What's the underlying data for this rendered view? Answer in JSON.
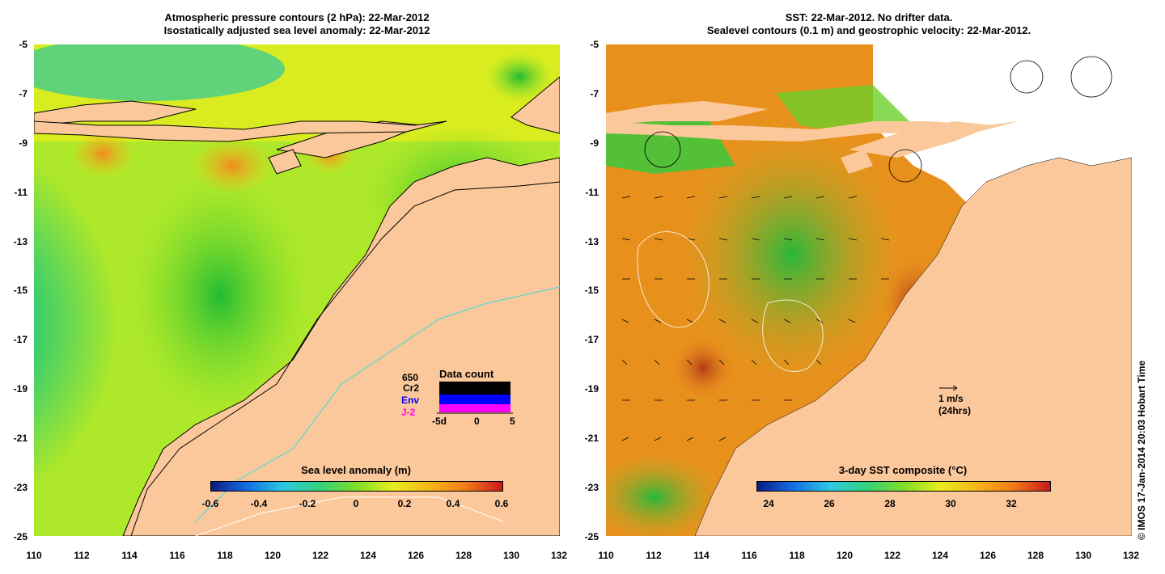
{
  "left_panel": {
    "title_line1": "Atmospheric pressure contours (2 hPa): 22-Mar-2012",
    "title_line2": "Isostatically adjusted sea level anomaly: 22-Mar-2012",
    "colorbar_title": "Sea level anomaly (m)",
    "colorbar_ticks": [
      "-0.6",
      "-0.4",
      "-0.2",
      "0",
      "0.2",
      "0.4",
      "0.6"
    ],
    "inset": {
      "count": "650",
      "title": "Data count",
      "legend": [
        {
          "label": "Cr2",
          "color": "#000000"
        },
        {
          "label": "Env",
          "color": "#0000ff"
        },
        {
          "label": "J-2",
          "color": "#ff00ff"
        }
      ],
      "axis_ticks": [
        "-5d",
        "0",
        "5"
      ]
    }
  },
  "right_panel": {
    "title_line1": "SST: 22-Mar-2012. No drifter data.",
    "title_line2": "Sealevel contours (0.1 m) and geostrophic velocity: 22-Mar-2012.",
    "colorbar_title": "3-day SST composite (°C)",
    "colorbar_ticks": [
      "24",
      "26",
      "28",
      "30",
      "32"
    ],
    "scale_label1": "1 m/s",
    "scale_label2": "(24hrs)"
  },
  "axes": {
    "y_ticks": [
      "-5",
      "-7",
      "-9",
      "-11",
      "-13",
      "-15",
      "-17",
      "-19",
      "-21",
      "-23",
      "-25"
    ],
    "x_ticks": [
      "110",
      "112",
      "114",
      "116",
      "118",
      "120",
      "122",
      "124",
      "126",
      "128",
      "130",
      "132"
    ],
    "lon_range": [
      110,
      132
    ],
    "lat_range": [
      -25,
      -5
    ]
  },
  "credit": "© IMOS 17-Jan-2014 20:03 Hobart Time",
  "colors": {
    "land": "#fbc89b",
    "white_gap": "#ffffff"
  }
}
